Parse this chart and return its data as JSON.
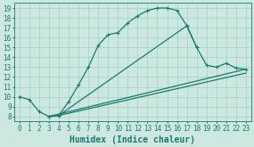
{
  "xlabel": "Humidex (Indice chaleur)",
  "bg_color": "#cce8e0",
  "line_color": "#1a7a6e",
  "grid_color": "#aad4cc",
  "xlim": [
    -0.5,
    23.5
  ],
  "ylim": [
    7.5,
    19.5
  ],
  "xticks": [
    0,
    1,
    2,
    3,
    4,
    5,
    6,
    7,
    8,
    9,
    10,
    11,
    12,
    13,
    14,
    15,
    16,
    17,
    18,
    19,
    20,
    21,
    22,
    23
  ],
  "yticks": [
    8,
    9,
    10,
    11,
    12,
    13,
    14,
    15,
    16,
    17,
    18,
    19
  ],
  "line1_x": [
    0,
    1,
    2,
    3,
    4,
    5,
    6,
    7,
    8,
    9,
    10,
    11,
    12,
    13,
    14,
    15,
    16,
    17,
    18
  ],
  "line1_y": [
    10,
    9.7,
    8.5,
    8.0,
    8.1,
    9.5,
    11.2,
    13.0,
    15.2,
    16.3,
    16.5,
    17.5,
    18.2,
    18.75,
    19.0,
    19.0,
    18.75,
    17.2,
    15.0
  ],
  "line2_x": [
    3,
    4,
    17,
    18,
    19,
    20,
    21,
    22,
    23
  ],
  "line2_y": [
    8.0,
    8.1,
    17.2,
    15.0,
    13.2,
    13.0,
    13.4,
    12.9,
    12.8
  ],
  "line3_x": [
    3,
    23
  ],
  "line3_y": [
    8.0,
    12.8
  ],
  "line4_x": [
    4,
    23
  ],
  "line4_y": [
    8.1,
    12.4
  ],
  "tick_fontsize": 5.5,
  "label_fontsize": 7.0
}
